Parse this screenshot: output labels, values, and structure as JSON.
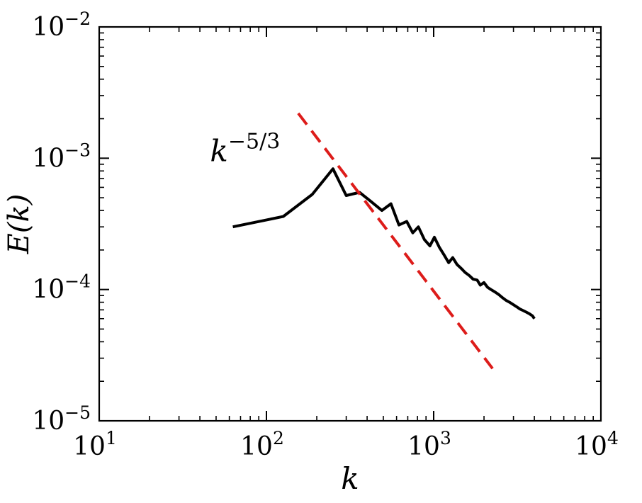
{
  "chart_data": {
    "type": "line",
    "xscale": "log",
    "yscale": "log",
    "xlim": [
      10,
      10000
    ],
    "ylim": [
      1e-05,
      0.01
    ],
    "xlabel": "k",
    "ylabel": "E(k)",
    "grid": false,
    "x_ticks": [
      {
        "value": 10,
        "base": "10",
        "exp": "1"
      },
      {
        "value": 100,
        "base": "10",
        "exp": "2"
      },
      {
        "value": 1000,
        "base": "10",
        "exp": "3"
      },
      {
        "value": 10000,
        "base": "10",
        "exp": "4"
      }
    ],
    "y_ticks": [
      {
        "value": 1e-05,
        "base": "10",
        "exp": "−5"
      },
      {
        "value": 0.0001,
        "base": "10",
        "exp": "−4"
      },
      {
        "value": 0.001,
        "base": "10",
        "exp": "−3"
      },
      {
        "value": 0.01,
        "base": "10",
        "exp": "−2"
      }
    ],
    "annotation": {
      "base": "k",
      "exp": "−5/3",
      "x": 46,
      "y": 0.00095
    },
    "series": [
      {
        "color": "#000000",
        "style": "solid",
        "points": [
          [
            63,
            0.0003
          ],
          [
            126,
            0.00036
          ],
          [
            188,
            0.00053
          ],
          [
            250,
            0.00083
          ],
          [
            300,
            0.00052
          ],
          [
            360,
            0.00055
          ],
          [
            420,
            0.00047
          ],
          [
            490,
            0.0004
          ],
          [
            555,
            0.00045
          ],
          [
            620,
            0.00031
          ],
          [
            690,
            0.00033
          ],
          [
            750,
            0.00027
          ],
          [
            810,
            0.0003
          ],
          [
            880,
            0.00024
          ],
          [
            950,
            0.000215
          ],
          [
            1010,
            0.00025
          ],
          [
            1080,
            0.00021
          ],
          [
            1150,
            0.000185
          ],
          [
            1230,
            0.00016
          ],
          [
            1300,
            0.000175
          ],
          [
            1380,
            0.000155
          ],
          [
            1460,
            0.000145
          ],
          [
            1540,
            0.000135
          ],
          [
            1630,
            0.000128
          ],
          [
            1720,
            0.00012
          ],
          [
            1820,
            0.000118
          ],
          [
            1900,
            0.000108
          ],
          [
            2000,
            0.000113
          ],
          [
            2100,
            0.000104
          ],
          [
            2200,
            0.0001
          ],
          [
            2320,
            9.6e-05
          ],
          [
            2440,
            9.2e-05
          ],
          [
            2570,
            8.7e-05
          ],
          [
            2700,
            8.3e-05
          ],
          [
            2840,
            8e-05
          ],
          [
            2980,
            7.7e-05
          ],
          [
            3130,
            7.4e-05
          ],
          [
            3280,
            7.1e-05
          ],
          [
            3440,
            6.9e-05
          ],
          [
            3600,
            6.7e-05
          ],
          [
            3760,
            6.5e-05
          ],
          [
            3900,
            6.3e-05
          ],
          [
            4000,
            6e-05
          ]
        ]
      },
      {
        "color": "#dd1c1a",
        "style": "dashed",
        "points": [
          [
            155,
            0.0022
          ],
          [
            2250,
            2.5e-05
          ]
        ]
      }
    ]
  }
}
